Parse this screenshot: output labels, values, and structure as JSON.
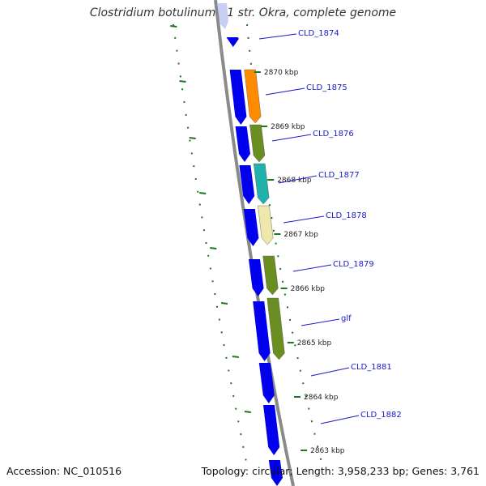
{
  "title": "Clostridium botulinum B1 str. Okra, complete genome",
  "footer": {
    "accession": "Accession: NC_010516",
    "topology": "Topology: circular; Length: 3,958,233 bp; Genes: 3,761"
  },
  "colors": {
    "backbone": "#8a8a8a",
    "forward_gene": "#0000ee",
    "faded_gene": "#c8cff5",
    "tick": "#1a7a1a",
    "label": "#1a1acc",
    "leader": "#1a1acc",
    "kbp_text": "#222222"
  },
  "chart_data": {
    "type": "genome_map",
    "view": "linear segment of circular genome",
    "scale_labels": [
      "2870 kbp",
      "2869 kbp",
      "2868 kbp",
      "2867 kbp",
      "2866 kbp",
      "2865 kbp",
      "2864 kbp",
      "2863 kbp"
    ],
    "genes": [
      {
        "label": "CLD_1874",
        "color": "#0000ee"
      },
      {
        "label": "CLD_1875",
        "color": "#ff8c00"
      },
      {
        "label": "CLD_1876",
        "color": "#6b8e23"
      },
      {
        "label": "CLD_1877",
        "color": "#20b2aa"
      },
      {
        "label": "CLD_1878",
        "color": "#eee8aa"
      },
      {
        "label": "CLD_1879",
        "color": "#6b8e23"
      },
      {
        "label": "glf",
        "color": "#6b8e23"
      },
      {
        "label": "CLD_1881",
        "color": "#0000ee"
      },
      {
        "label": "CLD_1882",
        "color": "#0000ee"
      }
    ]
  }
}
